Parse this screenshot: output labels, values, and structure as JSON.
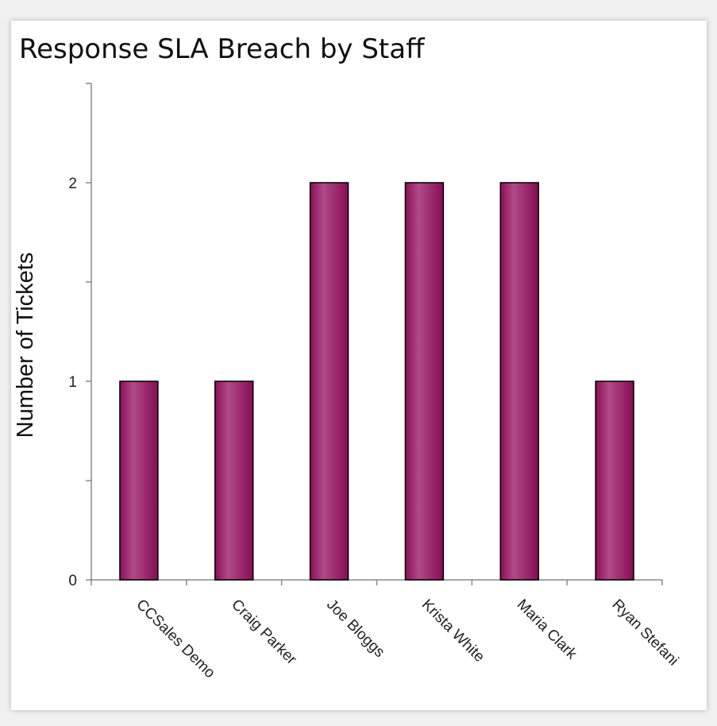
{
  "chart_data": {
    "type": "bar",
    "title": "Response SLA Breach by Staff",
    "xlabel": "",
    "ylabel": "Number of Tickets",
    "categories": [
      "CCSales Demo",
      "Craig Parker",
      "Joe Bloggs",
      "Krista White",
      "Maria Clark",
      "Ryan Stefani"
    ],
    "values": [
      1,
      1,
      2,
      2,
      2,
      1
    ],
    "ylim": [
      0,
      2.5
    ],
    "yticks": [
      0,
      1,
      2
    ],
    "ytick_labels": [
      "0",
      "1",
      "2"
    ],
    "grid": false,
    "legend": "none",
    "bar_color": "#8b0f55",
    "bar_highlight": "#b04a88",
    "bar_outline": "#000000"
  }
}
